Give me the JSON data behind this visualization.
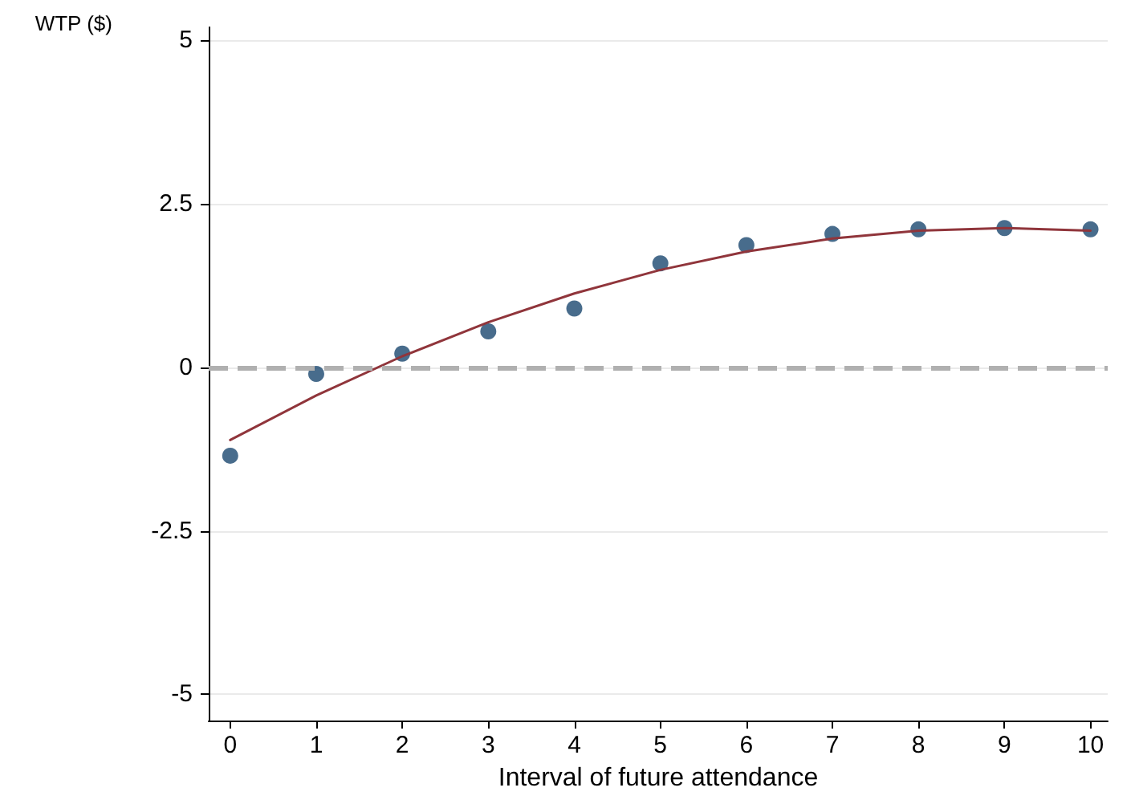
{
  "chart_data": {
    "type": "scatter",
    "xlabel": "Interval of future attendance",
    "ylabel": "WTP ($)",
    "xlim": [
      -0.25,
      10.2
    ],
    "ylim": [
      -5.4,
      5.2
    ],
    "xticks": [
      0,
      1,
      2,
      3,
      4,
      5,
      6,
      7,
      8,
      9,
      10
    ],
    "yticks": [
      -5,
      -2.5,
      0,
      2.5,
      5
    ],
    "grid": "y",
    "marker": "circle",
    "series": [
      {
        "color": "#1a476f",
        "x": [
          0,
          1,
          2,
          3,
          4,
          5,
          6,
          7,
          8,
          9,
          10
        ],
        "values": [
          -1.35,
          -0.1,
          0.21,
          0.55,
          0.9,
          1.59,
          1.87,
          2.04,
          2.11,
          2.13,
          2.11
        ]
      },
      {
        "type": "line",
        "color": "#90353b",
        "marker": "none",
        "line_style": "solid",
        "x": [
          0,
          1,
          2,
          3,
          4,
          5,
          6,
          7,
          8,
          9,
          10
        ],
        "values": [
          -1.11,
          -0.43,
          0.17,
          0.69,
          1.13,
          1.49,
          1.77,
          1.97,
          2.09,
          2.13,
          2.09
        ]
      }
    ],
    "ref_lines": [
      {
        "axis": "y",
        "value": 0,
        "color": "#b0b0b0",
        "line_style": "dashed"
      }
    ]
  }
}
